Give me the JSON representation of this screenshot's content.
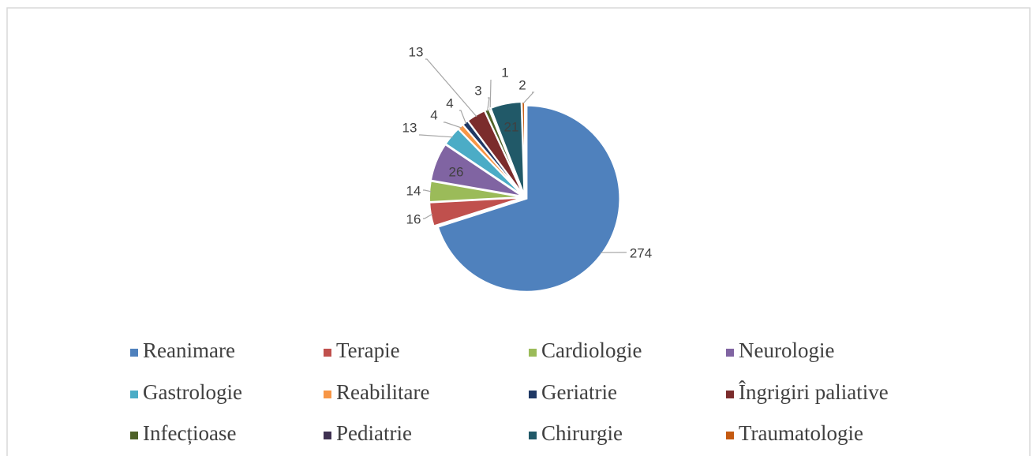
{
  "chart_data": {
    "type": "pie",
    "categories": [
      "Reanimare",
      "Terapie",
      "Cardiologie",
      "Neurologie",
      "Gastrologie",
      "Reabilitare",
      "Geriatrie",
      "Îngrigiri paliative",
      "Infecțioase",
      "Pediatrie",
      "Chirurgie",
      "Traumatologie"
    ],
    "values": [
      274,
      16,
      14,
      26,
      13,
      4,
      4,
      13,
      3,
      1,
      21,
      2
    ],
    "colors": [
      "#4f81bd",
      "#c0504d",
      "#9bbb59",
      "#8064a2",
      "#4bacc6",
      "#f79646",
      "#1f3864",
      "#7b2c2c",
      "#4f6228",
      "#3f3151",
      "#215968",
      "#c55a11"
    ],
    "legend": "bottom"
  }
}
